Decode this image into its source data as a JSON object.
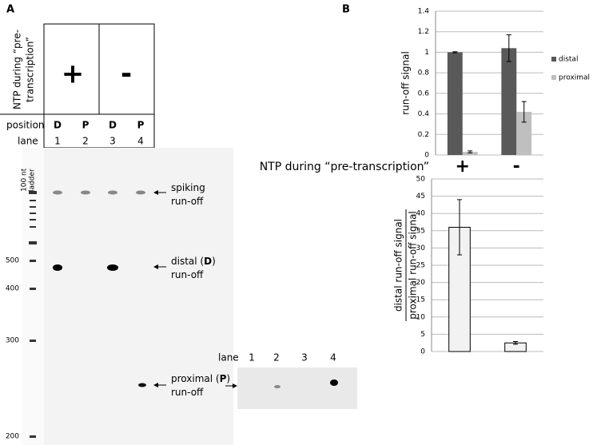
{
  "panel_a": {
    "label": "A",
    "condition_label": [
      "NTP during “pre-",
      "transcription”"
    ],
    "conditions": [
      "+",
      "-"
    ],
    "position_label": "position",
    "positions": [
      "D",
      "P",
      "D",
      "P"
    ],
    "lane_label": "lane",
    "lanes": [
      "1",
      "2",
      "3",
      "4"
    ],
    "ladder_label": [
      "100 nt",
      "ladder"
    ],
    "ladder_sizes": [
      "500",
      "400",
      "300",
      "200"
    ],
    "annotations": [
      [
        [
          "spiking"
        ],
        [
          "run-off"
        ]
      ],
      [
        [
          "distal (",
          "D",
          ")"
        ],
        [
          "run-off"
        ]
      ],
      [
        [
          "proximal (",
          "P",
          ")"
        ],
        [
          "run-off"
        ]
      ]
    ],
    "inset": {
      "lane_label": "lane",
      "lanes": [
        "1",
        "2",
        "3",
        "4"
      ]
    }
  },
  "panel_b_label": "B",
  "chart_data": [
    {
      "type": "bar",
      "ylabel": "run-off signal",
      "xlabel": "NTP during “pre-transcription”",
      "categories": [
        "+",
        "-"
      ],
      "series": [
        {
          "name": "distal",
          "color": "#595959",
          "values": [
            1.0,
            1.04
          ],
          "errors": [
            0.005,
            0.13
          ]
        },
        {
          "name": "proximal",
          "color": "#bfbfbf",
          "values": [
            0.03,
            0.42
          ],
          "errors": [
            0.01,
            0.1
          ]
        }
      ],
      "ylim": [
        0,
        1.4
      ],
      "yticks": [
        0,
        0.2,
        0.4,
        0.6,
        0.8,
        1,
        1.2,
        1.4
      ],
      "grid": true,
      "legend": "right"
    },
    {
      "type": "bar",
      "ylabel": {
        "numerator": "distal run-off signal",
        "denominator": "proximal run-off signal"
      },
      "categories": [
        null,
        null
      ],
      "series": [
        {
          "color": "#f2f2f2",
          "values": [
            36,
            2.5
          ],
          "errors": [
            8,
            0.4
          ]
        }
      ],
      "ylim": [
        0,
        50
      ],
      "yticks": [
        0,
        5,
        10,
        15,
        20,
        25,
        30,
        35,
        40,
        45,
        50
      ],
      "grid": true
    }
  ]
}
